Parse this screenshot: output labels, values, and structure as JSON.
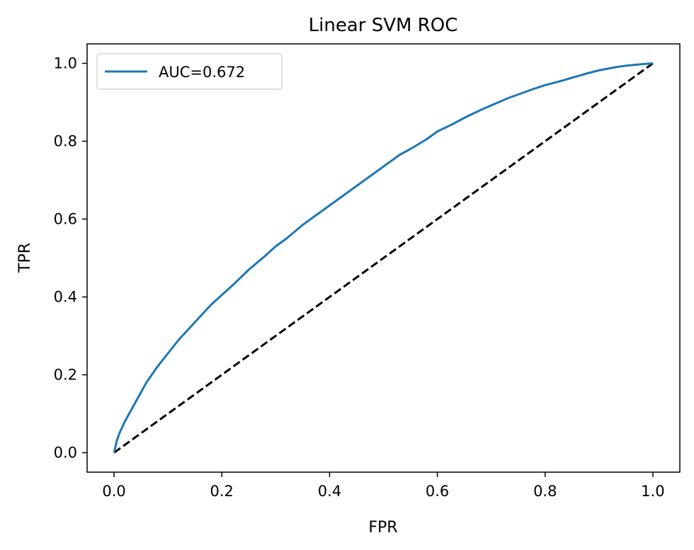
{
  "chart_data": {
    "type": "line",
    "title": "Linear SVM ROC",
    "xlabel": "FPR",
    "ylabel": "TPR",
    "xlim": [
      -0.05,
      1.05
    ],
    "ylim": [
      -0.05,
      1.05
    ],
    "xticks": [
      0.0,
      0.2,
      0.4,
      0.6,
      0.8,
      1.0
    ],
    "yticks": [
      0.0,
      0.2,
      0.4,
      0.6,
      0.8,
      1.0
    ],
    "xtick_labels": [
      "0.0",
      "0.2",
      "0.4",
      "0.6",
      "0.8",
      "1.0"
    ],
    "ytick_labels": [
      "0.0",
      "0.2",
      "0.4",
      "0.6",
      "0.8",
      "1.0"
    ],
    "grid": false,
    "legend_position": "top-left",
    "series": [
      {
        "name": "AUC=0.672",
        "color": "#1f77b4",
        "style": "solid",
        "x": [
          0.0,
          0.005,
          0.01,
          0.02,
          0.03,
          0.04,
          0.05,
          0.06,
          0.08,
          0.1,
          0.12,
          0.14,
          0.16,
          0.18,
          0.2,
          0.22,
          0.25,
          0.28,
          0.3,
          0.32,
          0.35,
          0.38,
          0.4,
          0.42,
          0.45,
          0.48,
          0.5,
          0.53,
          0.55,
          0.58,
          0.6,
          0.63,
          0.65,
          0.68,
          0.7,
          0.73,
          0.75,
          0.78,
          0.8,
          0.83,
          0.85,
          0.88,
          0.9,
          0.93,
          0.95,
          0.98,
          1.0
        ],
        "y": [
          0.0,
          0.03,
          0.05,
          0.08,
          0.105,
          0.13,
          0.155,
          0.18,
          0.22,
          0.255,
          0.29,
          0.32,
          0.35,
          0.38,
          0.405,
          0.43,
          0.47,
          0.505,
          0.53,
          0.55,
          0.585,
          0.615,
          0.635,
          0.655,
          0.685,
          0.715,
          0.735,
          0.765,
          0.78,
          0.805,
          0.825,
          0.845,
          0.86,
          0.88,
          0.892,
          0.91,
          0.92,
          0.935,
          0.944,
          0.955,
          0.963,
          0.975,
          0.982,
          0.99,
          0.994,
          0.998,
          1.0
        ]
      },
      {
        "name": "",
        "color": "#000000",
        "style": "dashed",
        "x": [
          0.0,
          1.0
        ],
        "y": [
          0.0,
          1.0
        ]
      }
    ]
  }
}
